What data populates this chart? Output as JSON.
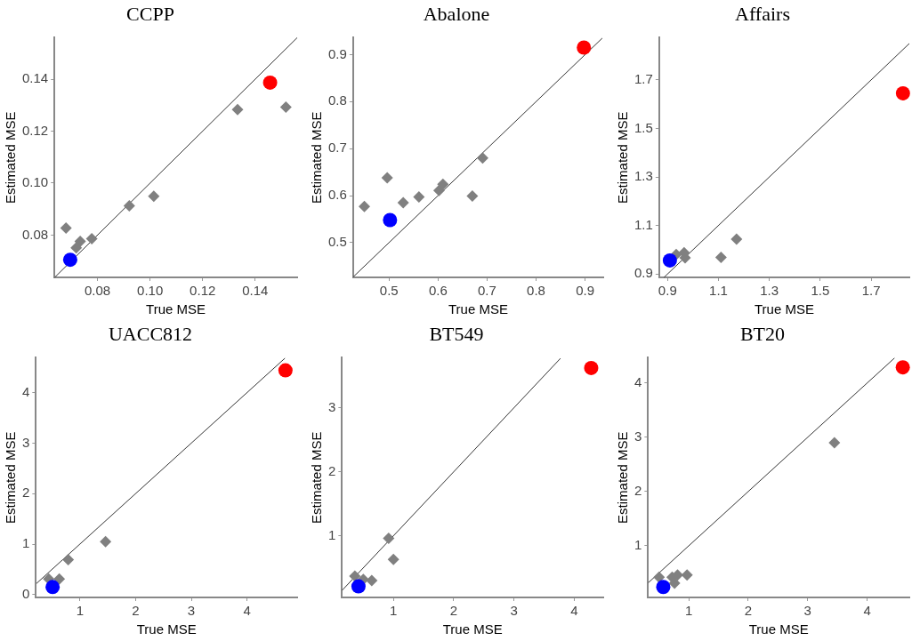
{
  "chart_data": [
    {
      "type": "scatter",
      "title": "CCPP",
      "xlabel": "True MSE",
      "ylabel": "Estimated MSE",
      "xlim": [
        0.0636,
        0.156
      ],
      "ylim": [
        0.0637,
        0.156
      ],
      "xticks": [
        {
          "value": 0.08,
          "label": "0.08"
        },
        {
          "value": 0.1,
          "label": "0.10"
        },
        {
          "value": 0.12,
          "label": "0.12"
        },
        {
          "value": 0.14,
          "label": "0.14"
        }
      ],
      "yticks": [
        {
          "value": 0.08,
          "label": "0.08"
        },
        {
          "value": 0.1,
          "label": "0.10"
        },
        {
          "value": 0.12,
          "label": "0.12"
        },
        {
          "value": 0.14,
          "label": "0.14"
        }
      ],
      "series": [
        {
          "type": "line",
          "color": "#333333",
          "line_style": "solid",
          "marker": "none",
          "x": [
            0.0637,
            0.156
          ],
          "values": [
            0.0637,
            0.156
          ]
        },
        {
          "color": "#808080",
          "marker": "diamond",
          "x": [
            0.068,
            0.0719,
            0.0734,
            0.0778,
            0.0921,
            0.1014,
            0.1333,
            0.1517
          ],
          "values": [
            0.0827,
            0.0751,
            0.0776,
            0.0786,
            0.0913,
            0.0949,
            0.1283,
            0.1293
          ]
        },
        {
          "color": "#0000ff",
          "marker": "circle",
          "x": [
            0.0696
          ],
          "values": [
            0.0705
          ]
        },
        {
          "color": "#ff0000",
          "marker": "circle",
          "x": [
            0.1457
          ],
          "values": [
            0.1387
          ]
        }
      ]
    },
    {
      "type": "scatter",
      "title": "Abalone",
      "xlabel": "True MSE",
      "ylabel": "Estimated MSE",
      "xlim": [
        0.4267,
        0.937
      ],
      "ylim": [
        0.426,
        0.936
      ],
      "xticks": [
        0.5,
        0.6,
        0.7,
        0.8,
        0.9
      ],
      "yticks": [
        0.5,
        0.6,
        0.7,
        0.8,
        0.9
      ],
      "series": [
        {
          "type": "line",
          "color": "#333333",
          "line_style": "solid",
          "marker": "none",
          "x": [
            0.427,
            0.935
          ],
          "values": [
            0.427,
            0.935
          ]
        },
        {
          "color": "#808080",
          "marker": "diamond",
          "x": [
            0.4497,
            0.4963,
            0.529,
            0.561,
            0.602,
            0.61,
            0.67,
            0.691
          ],
          "values": [
            0.577,
            0.638,
            0.585,
            0.597,
            0.611,
            0.624,
            0.599,
            0.68
          ]
        },
        {
          "color": "#0000ff",
          "marker": "circle",
          "x": [
            0.502
          ],
          "values": [
            0.548
          ]
        },
        {
          "color": "#ff0000",
          "marker": "circle",
          "x": [
            0.8975
          ],
          "values": [
            0.915
          ]
        }
      ]
    },
    {
      "type": "scatter",
      "title": "Affairs",
      "xlabel": "True MSE",
      "ylabel": "Estimated MSE",
      "xlim": [
        0.867,
        1.85
      ],
      "ylim": [
        0.886,
        1.874
      ],
      "xticks": [
        0.9,
        1.1,
        1.3,
        1.5,
        1.7
      ],
      "yticks": [
        0.9,
        1.1,
        1.3,
        1.5,
        1.7
      ],
      "series": [
        {
          "type": "line",
          "color": "#333333",
          "line_style": "solid",
          "marker": "none",
          "x": [
            0.886,
            1.85
          ],
          "values": [
            0.886,
            1.85
          ]
        },
        {
          "color": "#808080",
          "marker": "diamond",
          "x": [
            0.934,
            0.965,
            0.969,
            1.11,
            1.171
          ],
          "values": [
            0.98,
            0.988,
            0.967,
            0.968,
            1.044
          ]
        },
        {
          "color": "#0000ff",
          "marker": "circle",
          "x": [
            0.909
          ],
          "values": [
            0.956
          ]
        },
        {
          "color": "#ff0000",
          "marker": "circle",
          "x": [
            1.825
          ],
          "values": [
            1.645
          ]
        }
      ]
    },
    {
      "type": "scatter",
      "title": "UACC812",
      "xlabel": "True MSE",
      "ylabel": "Estimated MSE",
      "xlim": [
        0.21,
        4.9
      ],
      "ylim": [
        -0.056,
        4.69
      ],
      "xticks": [
        1,
        2,
        3,
        4
      ],
      "yticks": [
        0,
        1,
        2,
        3,
        4
      ],
      "series": [
        {
          "type": "line",
          "color": "#333333",
          "line_style": "solid",
          "marker": "none",
          "x": [
            0.22,
            4.68
          ],
          "values": [
            0.22,
            4.68
          ]
        },
        {
          "color": "#808080",
          "marker": "diamond",
          "x": [
            0.44,
            0.63,
            0.79,
            1.46
          ],
          "values": [
            0.31,
            0.31,
            0.69,
            1.05
          ]
        },
        {
          "color": "#0000ff",
          "marker": "circle",
          "x": [
            0.51
          ],
          "values": [
            0.15
          ]
        },
        {
          "color": "#ff0000",
          "marker": "circle",
          "x": [
            4.69
          ],
          "values": [
            4.44
          ]
        }
      ]
    },
    {
      "type": "scatter",
      "title": "BT549",
      "xlabel": "True MSE",
      "ylabel": "Estimated MSE",
      "xlim": [
        0.146,
        4.48
      ],
      "ylim": [
        0.038,
        3.78
      ],
      "xticks": [
        1,
        2,
        3,
        4
      ],
      "yticks": [
        1,
        2,
        3
      ],
      "series": [
        {
          "type": "line",
          "color": "#333333",
          "line_style": "solid",
          "marker": "none",
          "x": [
            0.15,
            3.77
          ],
          "values": [
            0.15,
            3.77
          ]
        },
        {
          "color": "#808080",
          "marker": "diamond",
          "x": [
            0.36,
            0.5,
            0.64,
            0.92,
            1.0
          ],
          "values": [
            0.37,
            0.32,
            0.3,
            0.96,
            0.63
          ]
        },
        {
          "color": "#0000ff",
          "marker": "circle",
          "x": [
            0.42
          ],
          "values": [
            0.21
          ]
        },
        {
          "color": "#ff0000",
          "marker": "circle",
          "x": [
            4.28
          ],
          "values": [
            3.62
          ]
        }
      ]
    },
    {
      "type": "scatter",
      "title": "BT20",
      "xlabel": "True MSE",
      "ylabel": "Estimated MSE",
      "xlim": [
        0.314,
        4.71
      ],
      "ylim": [
        0.047,
        4.466
      ],
      "xticks": [
        1,
        2,
        3,
        4
      ],
      "yticks": [
        1,
        2,
        3,
        4
      ],
      "series": [
        {
          "type": "line",
          "color": "#333333",
          "line_style": "solid",
          "marker": "none",
          "x": [
            0.32,
            4.46
          ],
          "values": [
            0.32,
            4.46
          ]
        },
        {
          "color": "#808080",
          "marker": "diamond",
          "x": [
            0.5,
            0.72,
            0.76,
            0.81,
            0.97,
            3.45
          ],
          "values": [
            0.42,
            0.42,
            0.31,
            0.46,
            0.46,
            2.9
          ]
        },
        {
          "color": "#0000ff",
          "marker": "circle",
          "x": [
            0.57
          ],
          "values": [
            0.24
          ]
        },
        {
          "color": "#ff0000",
          "marker": "circle",
          "x": [
            4.6
          ],
          "values": [
            4.29
          ]
        }
      ]
    }
  ]
}
